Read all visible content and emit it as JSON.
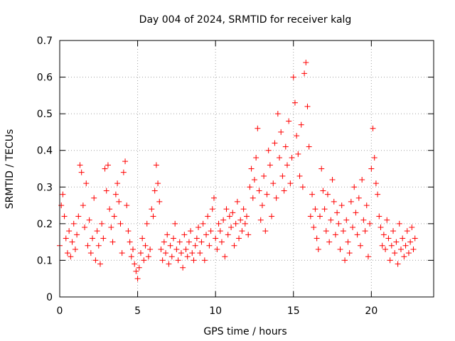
{
  "chart_data": {
    "type": "scatter",
    "title": "Day 004 of 2024, SRMTID for receiver kalg",
    "xlabel": "GPS time / hours",
    "ylabel": "SRMTID / TECUs",
    "xlim": [
      0,
      24
    ],
    "ylim": [
      0,
      0.7
    ],
    "xticks": [
      0,
      5,
      10,
      15,
      20
    ],
    "yticks": [
      0,
      0.1,
      0.2,
      0.3,
      0.4,
      0.5,
      0.6,
      0.7
    ],
    "xtick_labels": [
      "0",
      "5",
      "10",
      "15",
      "20"
    ],
    "ytick_labels": [
      "0",
      "0.1",
      "0.2",
      "0.3",
      "0.4",
      "0.5",
      "0.6",
      "0.7"
    ],
    "grid": true,
    "marker": "+",
    "color": "#ff0000",
    "series": [
      {
        "name": "SRMTID",
        "points": [
          [
            0.0,
            0.14
          ],
          [
            0.1,
            0.25
          ],
          [
            0.2,
            0.28
          ],
          [
            0.3,
            0.22
          ],
          [
            0.4,
            0.16
          ],
          [
            0.5,
            0.12
          ],
          [
            0.6,
            0.18
          ],
          [
            0.7,
            0.11
          ],
          [
            0.8,
            0.15
          ],
          [
            0.9,
            0.2
          ],
          [
            1.0,
            0.13
          ],
          [
            1.1,
            0.17
          ],
          [
            1.2,
            0.22
          ],
          [
            1.3,
            0.36
          ],
          [
            1.4,
            0.34
          ],
          [
            1.5,
            0.25
          ],
          [
            1.6,
            0.19
          ],
          [
            1.7,
            0.31
          ],
          [
            1.8,
            0.14
          ],
          [
            1.9,
            0.21
          ],
          [
            2.0,
            0.12
          ],
          [
            2.1,
            0.16
          ],
          [
            2.2,
            0.27
          ],
          [
            2.3,
            0.1
          ],
          [
            2.4,
            0.18
          ],
          [
            2.5,
            0.14
          ],
          [
            2.6,
            0.09
          ],
          [
            2.7,
            0.2
          ],
          [
            2.8,
            0.16
          ],
          [
            2.9,
            0.35
          ],
          [
            3.0,
            0.29
          ],
          [
            3.1,
            0.36
          ],
          [
            3.2,
            0.24
          ],
          [
            3.3,
            0.19
          ],
          [
            3.4,
            0.15
          ],
          [
            3.5,
            0.22
          ],
          [
            3.6,
            0.28
          ],
          [
            3.7,
            0.31
          ],
          [
            3.8,
            0.26
          ],
          [
            3.9,
            0.2
          ],
          [
            4.0,
            0.12
          ],
          [
            4.1,
            0.34
          ],
          [
            4.2,
            0.37
          ],
          [
            4.3,
            0.25
          ],
          [
            4.4,
            0.18
          ],
          [
            4.5,
            0.15
          ],
          [
            4.6,
            0.11
          ],
          [
            4.7,
            0.13
          ],
          [
            4.8,
            0.09
          ],
          [
            4.9,
            0.07
          ],
          [
            5.0,
            0.05
          ],
          [
            5.1,
            0.08
          ],
          [
            5.2,
            0.12
          ],
          [
            5.3,
            0.16
          ],
          [
            5.4,
            0.1
          ],
          [
            5.5,
            0.14
          ],
          [
            5.6,
            0.2
          ],
          [
            5.7,
            0.11
          ],
          [
            5.8,
            0.13
          ],
          [
            5.9,
            0.24
          ],
          [
            6.0,
            0.22
          ],
          [
            6.1,
            0.29
          ],
          [
            6.2,
            0.36
          ],
          [
            6.3,
            0.31
          ],
          [
            6.4,
            0.26
          ],
          [
            6.5,
            0.13
          ],
          [
            6.6,
            0.1
          ],
          [
            6.7,
            0.15
          ],
          [
            6.8,
            0.12
          ],
          [
            6.9,
            0.17
          ],
          [
            7.0,
            0.09
          ],
          [
            7.1,
            0.14
          ],
          [
            7.2,
            0.11
          ],
          [
            7.3,
            0.16
          ],
          [
            7.4,
            0.2
          ],
          [
            7.5,
            0.13
          ],
          [
            7.6,
            0.1
          ],
          [
            7.7,
            0.15
          ],
          [
            7.8,
            0.12
          ],
          [
            7.9,
            0.08
          ],
          [
            8.0,
            0.17
          ],
          [
            8.1,
            0.13
          ],
          [
            8.2,
            0.11
          ],
          [
            8.3,
            0.15
          ],
          [
            8.4,
            0.18
          ],
          [
            8.5,
            0.12
          ],
          [
            8.6,
            0.1
          ],
          [
            8.7,
            0.14
          ],
          [
            8.8,
            0.16
          ],
          [
            8.9,
            0.19
          ],
          [
            9.0,
            0.12
          ],
          [
            9.1,
            0.15
          ],
          [
            9.2,
            0.2
          ],
          [
            9.3,
            0.1
          ],
          [
            9.4,
            0.17
          ],
          [
            9.5,
            0.22
          ],
          [
            9.6,
            0.14
          ],
          [
            9.7,
            0.18
          ],
          [
            9.8,
            0.24
          ],
          [
            9.9,
            0.27
          ],
          [
            10.0,
            0.16
          ],
          [
            10.1,
            0.13
          ],
          [
            10.2,
            0.2
          ],
          [
            10.3,
            0.18
          ],
          [
            10.4,
            0.15
          ],
          [
            10.5,
            0.21
          ],
          [
            10.6,
            0.11
          ],
          [
            10.7,
            0.24
          ],
          [
            10.8,
            0.17
          ],
          [
            10.9,
            0.22
          ],
          [
            11.0,
            0.19
          ],
          [
            11.1,
            0.23
          ],
          [
            11.2,
            0.14
          ],
          [
            11.3,
            0.2
          ],
          [
            11.4,
            0.26
          ],
          [
            11.5,
            0.16
          ],
          [
            11.6,
            0.21
          ],
          [
            11.7,
            0.18
          ],
          [
            11.8,
            0.24
          ],
          [
            11.9,
            0.2
          ],
          [
            12.0,
            0.22
          ],
          [
            12.1,
            0.17
          ],
          [
            12.2,
            0.3
          ],
          [
            12.3,
            0.35
          ],
          [
            12.4,
            0.27
          ],
          [
            12.5,
            0.32
          ],
          [
            12.6,
            0.38
          ],
          [
            12.7,
            0.46
          ],
          [
            12.8,
            0.29
          ],
          [
            12.9,
            0.21
          ],
          [
            13.0,
            0.25
          ],
          [
            13.1,
            0.33
          ],
          [
            13.2,
            0.18
          ],
          [
            13.3,
            0.28
          ],
          [
            13.4,
            0.4
          ],
          [
            13.5,
            0.36
          ],
          [
            13.6,
            0.22
          ],
          [
            13.7,
            0.31
          ],
          [
            13.8,
            0.42
          ],
          [
            13.9,
            0.27
          ],
          [
            14.0,
            0.5
          ],
          [
            14.1,
            0.38
          ],
          [
            14.2,
            0.45
          ],
          [
            14.3,
            0.33
          ],
          [
            14.4,
            0.29
          ],
          [
            14.5,
            0.41
          ],
          [
            14.6,
            0.36
          ],
          [
            14.7,
            0.48
          ],
          [
            14.8,
            0.31
          ],
          [
            14.9,
            0.38
          ],
          [
            15.0,
            0.6
          ],
          [
            15.1,
            0.53
          ],
          [
            15.2,
            0.44
          ],
          [
            15.3,
            0.39
          ],
          [
            15.4,
            0.33
          ],
          [
            15.5,
            0.47
          ],
          [
            15.6,
            0.3
          ],
          [
            15.7,
            0.61
          ],
          [
            15.8,
            0.64
          ],
          [
            15.9,
            0.52
          ],
          [
            16.0,
            0.41
          ],
          [
            16.1,
            0.22
          ],
          [
            16.2,
            0.28
          ],
          [
            16.3,
            0.19
          ],
          [
            16.4,
            0.24
          ],
          [
            16.5,
            0.16
          ],
          [
            16.6,
            0.13
          ],
          [
            16.7,
            0.22
          ],
          [
            16.8,
            0.35
          ],
          [
            16.9,
            0.29
          ],
          [
            17.0,
            0.24
          ],
          [
            17.1,
            0.18
          ],
          [
            17.2,
            0.28
          ],
          [
            17.3,
            0.15
          ],
          [
            17.4,
            0.21
          ],
          [
            17.5,
            0.32
          ],
          [
            17.6,
            0.26
          ],
          [
            17.7,
            0.17
          ],
          [
            17.8,
            0.23
          ],
          [
            17.9,
            0.2
          ],
          [
            18.0,
            0.13
          ],
          [
            18.1,
            0.25
          ],
          [
            18.2,
            0.18
          ],
          [
            18.3,
            0.1
          ],
          [
            18.4,
            0.21
          ],
          [
            18.5,
            0.15
          ],
          [
            18.6,
            0.12
          ],
          [
            18.7,
            0.26
          ],
          [
            18.8,
            0.19
          ],
          [
            18.9,
            0.3
          ],
          [
            19.0,
            0.23
          ],
          [
            19.1,
            0.17
          ],
          [
            19.2,
            0.27
          ],
          [
            19.3,
            0.14
          ],
          [
            19.4,
            0.32
          ],
          [
            19.5,
            0.21
          ],
          [
            19.6,
            0.18
          ],
          [
            19.7,
            0.25
          ],
          [
            19.8,
            0.11
          ],
          [
            19.9,
            0.2
          ],
          [
            20.0,
            0.35
          ],
          [
            20.1,
            0.46
          ],
          [
            20.2,
            0.38
          ],
          [
            20.3,
            0.31
          ],
          [
            20.4,
            0.28
          ],
          [
            20.5,
            0.22
          ],
          [
            20.6,
            0.19
          ],
          [
            20.7,
            0.14
          ],
          [
            20.8,
            0.17
          ],
          [
            20.9,
            0.13
          ],
          [
            21.0,
            0.21
          ],
          [
            21.1,
            0.16
          ],
          [
            21.2,
            0.1
          ],
          [
            21.3,
            0.14
          ],
          [
            21.4,
            0.18
          ],
          [
            21.5,
            0.12
          ],
          [
            21.6,
            0.15
          ],
          [
            21.7,
            0.09
          ],
          [
            21.8,
            0.2
          ],
          [
            21.9,
            0.13
          ],
          [
            22.0,
            0.16
          ],
          [
            22.1,
            0.11
          ],
          [
            22.2,
            0.14
          ],
          [
            22.3,
            0.18
          ],
          [
            22.4,
            0.12
          ],
          [
            22.5,
            0.15
          ],
          [
            22.6,
            0.19
          ],
          [
            22.7,
            0.13
          ],
          [
            22.8,
            0.16
          ]
        ]
      }
    ]
  }
}
